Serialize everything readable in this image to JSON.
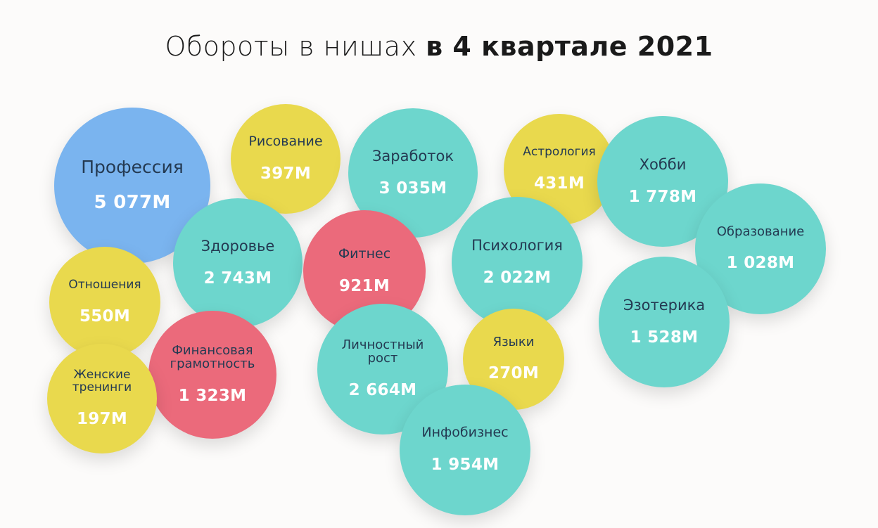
{
  "title": {
    "part1": "Обороты в нишах",
    "part2": "в 4 квартале 2021"
  },
  "colors": {
    "blue": "#7ab4ef",
    "yellow": "#e9d94d",
    "teal": "#6dd6cd",
    "red": "#eb6a7b"
  },
  "chart_data": {
    "type": "bubble",
    "unit": "M",
    "items": [
      {
        "label": "Профессия",
        "display": "5 077M",
        "value": 5077,
        "color": "blue"
      },
      {
        "label": "Рисование",
        "display": "397M",
        "value": 397,
        "color": "yellow"
      },
      {
        "label": "Заработок",
        "display": "3 035M",
        "value": 3035,
        "color": "teal"
      },
      {
        "label": "Астрология",
        "display": "431M",
        "value": 431,
        "color": "yellow"
      },
      {
        "label": "Хобби",
        "display": "1 778M",
        "value": 1778,
        "color": "teal"
      },
      {
        "label": "Образование",
        "display": "1 028M",
        "value": 1028,
        "color": "teal"
      },
      {
        "label": "Здоровье",
        "display": "2 743M",
        "value": 2743,
        "color": "teal"
      },
      {
        "label": "Фитнес",
        "display": "921M",
        "value": 921,
        "color": "red"
      },
      {
        "label": "Психология",
        "display": "2 022M",
        "value": 2022,
        "color": "teal"
      },
      {
        "label": "Отношения",
        "display": "550M",
        "value": 550,
        "color": "yellow"
      },
      {
        "label": "Эзотерика",
        "display": "1 528M",
        "value": 1528,
        "color": "teal"
      },
      {
        "label": "Финансовая грамотность",
        "display": "1 323M",
        "value": 1323,
        "color": "red"
      },
      {
        "label": "Личностный рост",
        "display": "2 664M",
        "value": 2664,
        "color": "teal"
      },
      {
        "label": "Языки",
        "display": "270M",
        "value": 270,
        "color": "yellow"
      },
      {
        "label": "Женские тренинги",
        "display": "197M",
        "value": 197,
        "color": "yellow"
      },
      {
        "label": "Инфобизнес",
        "display": "1 954M",
        "value": 1954,
        "color": "teal"
      }
    ]
  }
}
